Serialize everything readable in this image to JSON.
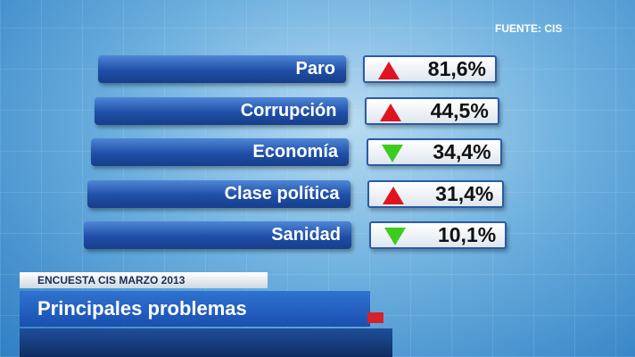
{
  "source": "FUENTE: CIS",
  "rows": [
    {
      "label": "Paro",
      "value": "81,6%",
      "trend": "up"
    },
    {
      "label": "Corrupción",
      "value": "44,5%",
      "trend": "up"
    },
    {
      "label": "Economía",
      "value": "34,4%",
      "trend": "down"
    },
    {
      "label": "Clase política",
      "value": "31,4%",
      "trend": "up"
    },
    {
      "label": "Sanidad",
      "value": "10,1%",
      "trend": "down"
    }
  ],
  "caption": {
    "kicker": "ENCUESTA CIS MARZO 2013",
    "title": "Principales problemas"
  }
}
